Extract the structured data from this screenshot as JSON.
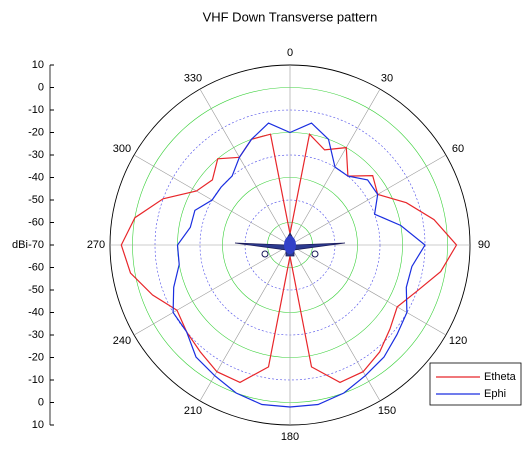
{
  "chart_data": {
    "type": "polar",
    "title": "VHF Down Transverse pattern",
    "ylabel": "dBi",
    "theta": [
      0,
      10,
      20,
      30,
      40,
      50,
      60,
      70,
      80,
      90,
      100,
      110,
      120,
      130,
      140,
      150,
      160,
      170,
      180,
      190,
      200,
      210,
      220,
      230,
      240,
      250,
      260,
      270,
      280,
      290,
      300,
      310,
      320,
      330,
      340,
      350
    ],
    "thetaticks": [
      0,
      30,
      60,
      90,
      120,
      150,
      180,
      210,
      240,
      270,
      300,
      330
    ],
    "rlim": [
      -70,
      10
    ],
    "rticks": [
      -70,
      -60,
      -50,
      -40,
      -30,
      -20,
      -10,
      0,
      10
    ],
    "series": [
      {
        "name": "Etheta",
        "color": "#e8262a",
        "values": [
          -65,
          -20,
          -25,
          -20,
          -30,
          -22,
          -25,
          -15,
          -5,
          4,
          -2,
          -10,
          -15,
          -12,
          -8,
          -5,
          -5,
          -15,
          -65,
          -15,
          -5,
          -5,
          -8,
          -10,
          -12,
          -5,
          2,
          5,
          0,
          -10,
          -22,
          -25,
          -20,
          -25,
          -20,
          -20
        ]
      },
      {
        "name": "Ephi",
        "color": "#1a2ee0",
        "values": [
          -20,
          -15,
          -20,
          -30,
          -30,
          -25,
          -25,
          -30,
          -20,
          -10,
          -15,
          -15,
          -10,
          -8,
          -5,
          -3,
          0,
          2,
          2,
          2,
          0,
          -3,
          -5,
          -10,
          -10,
          -15,
          -20,
          -20,
          -25,
          -25,
          -30,
          -30,
          -30,
          -25,
          -20,
          -15
        ]
      }
    ],
    "legend": "lower right",
    "grid": true
  }
}
